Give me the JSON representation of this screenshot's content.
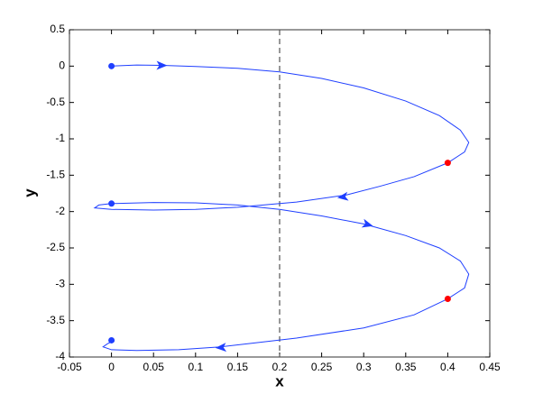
{
  "chart_data": {
    "type": "line",
    "xlabel": "x",
    "ylabel": "y",
    "xlim": [
      -0.05,
      0.45
    ],
    "xticks": [
      -0.05,
      0,
      0.05,
      0.1,
      0.15,
      0.2,
      0.25,
      0.3,
      0.35,
      0.4,
      0.45
    ],
    "ylim": [
      -4,
      0.5
    ],
    "yticks": [
      -4,
      -3.5,
      -3,
      -2.5,
      -2,
      -1.5,
      -1,
      -0.5,
      0,
      0.5
    ],
    "vline": 0.2,
    "vline_color": "#555555",
    "series": [
      {
        "style": "line",
        "color": "#1f3fff",
        "x": [
          0,
          0.03,
          0.06,
          0.1,
          0.15,
          0.2,
          0.25,
          0.3,
          0.35,
          0.39,
          0.415,
          0.425,
          0.42,
          0.4,
          0.36,
          0.32,
          0.28,
          0.22,
          0.15,
          0.1,
          0.05,
          0,
          -0.02,
          -0.015,
          0,
          0.05,
          0.1,
          0.15,
          0.2,
          0.25,
          0.3,
          0.35,
          0.39,
          0.415,
          0.425,
          0.42,
          0.4,
          0.36,
          0.3,
          0.22,
          0.13,
          0.08,
          0.03,
          0,
          -0.01,
          -0.005,
          0
        ],
        "values": [
          0,
          0.015,
          0.01,
          -0.005,
          -0.03,
          -0.08,
          -0.17,
          -0.3,
          -0.48,
          -0.68,
          -0.88,
          -1.05,
          -1.18,
          -1.33,
          -1.52,
          -1.65,
          -1.77,
          -1.87,
          -1.94,
          -1.97,
          -1.98,
          -1.97,
          -1.95,
          -1.91,
          -1.89,
          -1.875,
          -1.88,
          -1.91,
          -1.97,
          -2.06,
          -2.17,
          -2.33,
          -2.5,
          -2.68,
          -2.86,
          -3.05,
          -3.2,
          -3.42,
          -3.6,
          -3.74,
          -3.86,
          -3.9,
          -3.91,
          -3.9,
          -3.86,
          -3.82,
          -3.79
        ]
      },
      {
        "style": "arrow",
        "color": "#1f3fff",
        "x": [
          0.06,
          0.275,
          0.305,
          0.13
        ],
        "values": [
          0.01,
          -1.8,
          -2.18,
          -3.87
        ]
      },
      {
        "style": "dot",
        "color": "#1f3fff",
        "x": [
          0,
          0,
          0
        ],
        "values": [
          0,
          -1.89,
          -3.77
        ]
      },
      {
        "style": "dot",
        "color": "#ff0000",
        "x": [
          0.4,
          0.4
        ],
        "values": [
          -1.33,
          -3.2
        ]
      }
    ]
  }
}
